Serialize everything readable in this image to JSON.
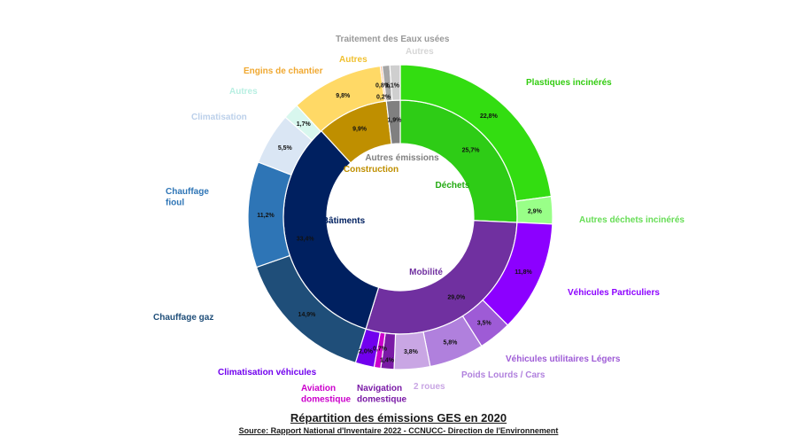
{
  "chart_data": {
    "type": "pie",
    "title": "Répartition des émissions GES en 2020",
    "source": "Source: Rapport National d'Inventaire 2022 - CCNUCC- Direction de l'Environnement",
    "inner_ring": [
      {
        "name": "Déchets",
        "value": 25.7,
        "label": "25,7%",
        "color": "#2ecc16"
      },
      {
        "name": "Mobilité",
        "value": 29.0,
        "label": "29,0%",
        "color": "#7030a0"
      },
      {
        "name": "Bâtiments",
        "value": 33.4,
        "label": "33,4%",
        "color": "#002060"
      },
      {
        "name": "Construction",
        "value": 9.9,
        "label": "9,9%",
        "color": "#bf8f00"
      },
      {
        "name": "Autres émissions",
        "value": 1.9,
        "label": "1,9%",
        "color": "#808080"
      }
    ],
    "outer_ring": [
      {
        "name": "Plastiques incinérés",
        "value": 22.8,
        "label": "22,8%",
        "color": "#33dd11"
      },
      {
        "name": "Autres déchets incinérés",
        "value": 2.9,
        "label": "2,9%",
        "color": "#99ff88"
      },
      {
        "name": "Véhicules Particuliers",
        "value": 11.8,
        "label": "11,8%",
        "color": "#8c00ff"
      },
      {
        "name": "Véhicules utilitaires Légers",
        "value": 3.5,
        "label": "3,5%",
        "color": "#9e5bd6"
      },
      {
        "name": "Poids Lourds / Cars",
        "value": 5.8,
        "label": "5,8%",
        "color": "#b080dd"
      },
      {
        "name": "2 roues",
        "value": 3.8,
        "label": "3,8%",
        "color": "#c9a6e4"
      },
      {
        "name": "Navigation domestique",
        "value": 1.4,
        "label": "1,4%",
        "color": "#7a1aa6"
      },
      {
        "name": "Aviation domestique",
        "value": 0.7,
        "label": "0,7%",
        "color": "#cc00cc"
      },
      {
        "name": "Climatisation véhicules",
        "value": 2.0,
        "label": "2,0%",
        "color": "#7100ee"
      },
      {
        "name": "Chauffage gaz",
        "value": 14.9,
        "label": "14,9%",
        "color": "#1f4e79"
      },
      {
        "name": "Chauffage fioul",
        "value": 11.2,
        "label": "11,2%",
        "color": "#2e75b6"
      },
      {
        "name": "Climatisation",
        "value": 5.5,
        "label": "5,5%",
        "color": "#dae6f4"
      },
      {
        "name": "Autres",
        "value": 1.7,
        "label": "1,7%",
        "color": "#d8f7ee"
      },
      {
        "name": "Autres",
        "value": 9.8,
        "label": "9,8%",
        "color": "#ffd966"
      },
      {
        "name": "Engins de chantier",
        "value": 0.2,
        "label": "0,2%",
        "color": "#f4b183"
      },
      {
        "name": "Traitement des Eaux usées",
        "value": 0.8,
        "label": "0,8%",
        "color": "#a6a6a6"
      },
      {
        "name": "Autres",
        "value": 1.1,
        "label": "1,1%",
        "color": "#cfcfcf"
      }
    ]
  }
}
